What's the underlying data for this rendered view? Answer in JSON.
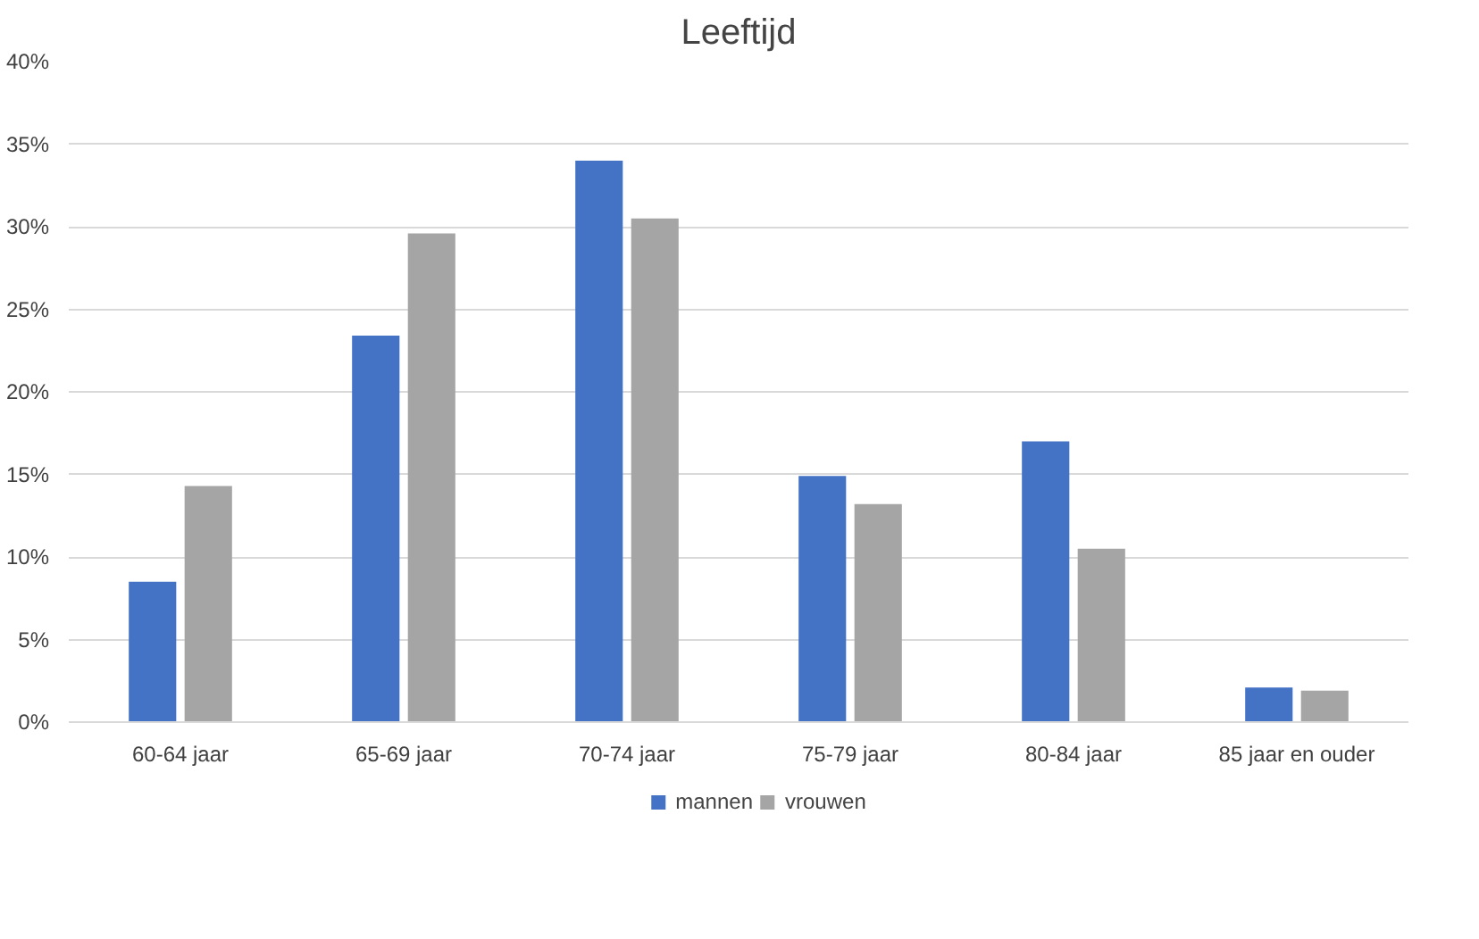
{
  "chart_data": {
    "type": "bar",
    "title": "Leeftijd",
    "categories": [
      "60-64 jaar",
      "65-69 jaar",
      "70-74 jaar",
      "75-79 jaar",
      "80-84 jaar",
      "85 jaar en ouder"
    ],
    "series": [
      {
        "name": "mannen",
        "color": "#4472c4",
        "values": [
          8.5,
          23.4,
          34.0,
          14.9,
          17.0,
          2.1
        ]
      },
      {
        "name": "vrouwen",
        "color": "#a5a5a5",
        "values": [
          14.3,
          29.6,
          30.5,
          13.2,
          10.5,
          1.9
        ]
      }
    ],
    "ylim": [
      0,
      40
    ],
    "yticks": [
      {
        "value": 0,
        "label": "0%"
      },
      {
        "value": 5,
        "label": "5%"
      },
      {
        "value": 10,
        "label": "10%"
      },
      {
        "value": 15,
        "label": "15%"
      },
      {
        "value": 20,
        "label": "20%"
      },
      {
        "value": 25,
        "label": "25%"
      },
      {
        "value": 30,
        "label": "30%"
      },
      {
        "value": 35,
        "label": "35%"
      },
      {
        "value": 40,
        "label": "40%"
      }
    ],
    "grid": "y",
    "legend": "bottom"
  }
}
